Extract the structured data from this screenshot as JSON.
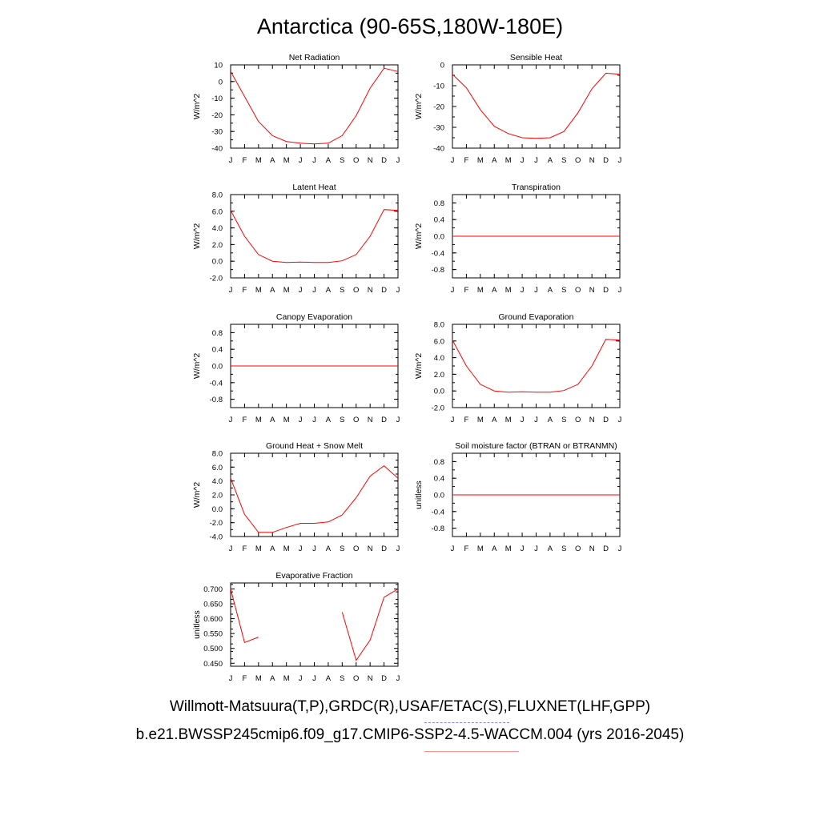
{
  "page": {
    "title": "Antarctica (90-65S,180W-180E)",
    "caption_line1": "Willmott-Matsuura(T,P),GRDC(R),USAF/ETAC(S),FLUXNET(LHF,GPP)",
    "caption_line2": "b.e21.BWSSP245cmip6.f09_g17.CMIP6-SSP2-4.5-WACCM.004 (yrs 2016-2045)",
    "line_color": "#ff0000"
  },
  "chart_data": [
    {
      "type": "line",
      "title": "Net Radiation",
      "ylabel": "W/m^2",
      "x": [
        "J",
        "F",
        "M",
        "A",
        "M",
        "J",
        "J",
        "A",
        "S",
        "O",
        "N",
        "D",
        "J"
      ],
      "ylim": [
        -40,
        10
      ],
      "yticks": [
        10,
        0,
        -10,
        -20,
        -30,
        -40
      ],
      "ytick_labels": [
        "10",
        "0",
        "-10",
        "-20",
        "-30",
        "-40"
      ],
      "values": [
        6,
        -9,
        -24,
        -32.5,
        -36,
        -37,
        -37.5,
        -37,
        -32.5,
        -20.5,
        -4,
        8,
        6
      ]
    },
    {
      "type": "line",
      "title": "Sensible Heat",
      "ylabel": "W/m^2",
      "x": [
        "J",
        "F",
        "M",
        "A",
        "M",
        "J",
        "J",
        "A",
        "S",
        "O",
        "N",
        "D",
        "J"
      ],
      "ylim": [
        -40,
        0
      ],
      "yticks": [
        0,
        -10,
        -20,
        -30,
        -40
      ],
      "ytick_labels": [
        "0",
        "-10",
        "-20",
        "-30",
        "-40"
      ],
      "values": [
        -4.5,
        -11,
        -21.5,
        -29.5,
        -33,
        -35,
        -35.3,
        -35,
        -32,
        -23,
        -11.5,
        -4,
        -4.5
      ]
    },
    {
      "type": "line",
      "title": "Latent Heat",
      "ylabel": "W/m^2",
      "x": [
        "J",
        "F",
        "M",
        "A",
        "M",
        "J",
        "J",
        "A",
        "S",
        "O",
        "N",
        "D",
        "J"
      ],
      "ylim": [
        -2,
        8
      ],
      "yticks": [
        8,
        6,
        4,
        2,
        0,
        -2
      ],
      "ytick_labels": [
        "8.0",
        "6.0",
        "4.0",
        "2.0",
        "0.0",
        "-2.0"
      ],
      "values": [
        6.1,
        3,
        0.8,
        0,
        -0.15,
        -0.1,
        -0.15,
        -0.15,
        0.05,
        0.8,
        3,
        6.2,
        6.1
      ]
    },
    {
      "type": "line",
      "title": "Transpiration",
      "ylabel": "W/m^2",
      "x": [
        "J",
        "F",
        "M",
        "A",
        "M",
        "J",
        "J",
        "A",
        "S",
        "O",
        "N",
        "D",
        "J"
      ],
      "ylim": [
        -1,
        1
      ],
      "yticks": [
        0.8,
        0.4,
        0,
        -0.4,
        -0.8
      ],
      "ytick_labels": [
        "0.8",
        "0.4",
        "0.0",
        "-0.4",
        "-0.8"
      ],
      "values": [
        0,
        0,
        0,
        0,
        0,
        0,
        0,
        0,
        0,
        0,
        0,
        0,
        0
      ]
    },
    {
      "type": "line",
      "title": "Canopy Evaporation",
      "ylabel": "W/m^2",
      "x": [
        "J",
        "F",
        "M",
        "A",
        "M",
        "J",
        "J",
        "A",
        "S",
        "O",
        "N",
        "D",
        "J"
      ],
      "ylim": [
        -1,
        1
      ],
      "yticks": [
        0.8,
        0.4,
        0,
        -0.4,
        -0.8
      ],
      "ytick_labels": [
        "0.8",
        "0.4",
        "0.0",
        "-0.4",
        "-0.8"
      ],
      "values": [
        0,
        0,
        0,
        0,
        0,
        0,
        0,
        0,
        0,
        0,
        0,
        0,
        0
      ]
    },
    {
      "type": "line",
      "title": "Ground Evaporation",
      "ylabel": "W/m^2",
      "x": [
        "J",
        "F",
        "M",
        "A",
        "M",
        "J",
        "J",
        "A",
        "S",
        "O",
        "N",
        "D",
        "J"
      ],
      "ylim": [
        -2,
        8
      ],
      "yticks": [
        8,
        6,
        4,
        2,
        0,
        -2
      ],
      "ytick_labels": [
        "8.0",
        "6.0",
        "4.0",
        "2.0",
        "0.0",
        "-2.0"
      ],
      "values": [
        6.1,
        3,
        0.8,
        0,
        -0.15,
        -0.1,
        -0.15,
        -0.15,
        0.05,
        0.8,
        3,
        6.2,
        6.1
      ]
    },
    {
      "type": "line",
      "title": "Ground Heat + Snow Melt",
      "ylabel": "W/m^2",
      "x": [
        "J",
        "F",
        "M",
        "A",
        "M",
        "J",
        "J",
        "A",
        "S",
        "O",
        "N",
        "D",
        "J"
      ],
      "ylim": [
        -4,
        8
      ],
      "yticks": [
        8,
        6,
        4,
        2,
        0,
        -2,
        -4
      ],
      "ytick_labels": [
        "8.0",
        "6.0",
        "4.0",
        "2.0",
        "0.0",
        "-2.0",
        "-4.0"
      ],
      "values": [
        4.4,
        -0.8,
        -3.4,
        -3.4,
        -2.7,
        -2.1,
        -2.1,
        -1.9,
        -0.9,
        1.6,
        4.7,
        6.2,
        4.4
      ]
    },
    {
      "type": "line",
      "title": "Soil moisture factor (BTRAN or BTRANMN)",
      "ylabel": "unitless",
      "x": [
        "J",
        "F",
        "M",
        "A",
        "M",
        "J",
        "J",
        "A",
        "S",
        "O",
        "N",
        "D",
        "J"
      ],
      "ylim": [
        -1,
        1
      ],
      "yticks": [
        0.8,
        0.4,
        0,
        -0.4,
        -0.8
      ],
      "ytick_labels": [
        "0.8",
        "0.4",
        "0.0",
        "-0.4",
        "-0.8"
      ],
      "values": [
        0,
        0,
        0,
        0,
        0,
        0,
        0,
        0,
        0,
        0,
        0,
        0,
        0
      ]
    },
    {
      "type": "line",
      "title": "Evaporative Fraction",
      "ylabel": "unitless",
      "x": [
        "J",
        "F",
        "M",
        "A",
        "M",
        "J",
        "J",
        "A",
        "S",
        "O",
        "N",
        "D",
        "J"
      ],
      "ylim": [
        0.44,
        0.72
      ],
      "yticks": [
        0.7,
        0.65,
        0.6,
        0.55,
        0.5,
        0.45
      ],
      "ytick_labels": [
        "0.700",
        "0.650",
        "0.600",
        "0.550",
        "0.500",
        "0.450"
      ],
      "values": [
        0.7,
        0.52,
        0.538,
        null,
        null,
        null,
        null,
        null,
        0.622,
        0.46,
        0.528,
        0.672,
        0.7
      ]
    }
  ]
}
